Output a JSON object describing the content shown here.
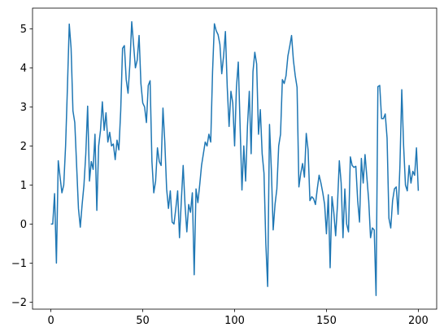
{
  "chart_data": {
    "type": "line",
    "x": [
      0,
      1,
      2,
      3,
      4,
      5,
      6,
      7,
      8,
      9,
      10,
      11,
      12,
      13,
      14,
      15,
      16,
      17,
      18,
      19,
      20,
      21,
      22,
      23,
      24,
      25,
      26,
      27,
      28,
      29,
      30,
      31,
      32,
      33,
      34,
      35,
      36,
      37,
      38,
      39,
      40,
      41,
      42,
      43,
      44,
      45,
      46,
      47,
      48,
      49,
      50,
      51,
      52,
      53,
      54,
      55,
      56,
      57,
      58,
      59,
      60,
      61,
      62,
      63,
      64,
      65,
      66,
      67,
      68,
      69,
      70,
      71,
      72,
      73,
      74,
      75,
      76,
      77,
      78,
      79,
      80,
      81,
      82,
      83,
      84,
      85,
      86,
      87,
      88,
      89,
      90,
      91,
      92,
      93,
      94,
      95,
      96,
      97,
      98,
      99,
      100,
      101,
      102,
      103,
      104,
      105,
      106,
      107,
      108,
      109,
      110,
      111,
      112,
      113,
      114,
      115,
      116,
      117,
      118,
      119,
      120,
      121,
      122,
      123,
      124,
      125,
      126,
      127,
      128,
      129,
      130,
      131,
      132,
      133,
      134,
      135,
      136,
      137,
      138,
      139,
      140,
      141,
      142,
      143,
      144,
      145,
      146,
      147,
      148,
      149,
      150,
      151,
      152,
      153,
      154,
      155,
      156,
      157,
      158,
      159,
      160,
      161,
      162,
      163,
      164,
      165,
      166,
      167,
      168,
      169,
      170,
      171,
      172,
      173,
      174,
      175,
      176,
      177,
      178,
      179,
      180,
      181,
      182,
      183,
      184,
      185,
      186,
      187,
      188,
      189,
      190,
      191,
      192,
      193,
      194,
      195,
      196,
      197,
      198,
      199,
      200
    ],
    "series": [
      {
        "color": "#1f77b4",
        "values": [
          0.0,
          0.0,
          0.78,
          -1.0,
          1.62,
          1.2,
          0.8,
          1.0,
          2.0,
          3.5,
          5.12,
          4.5,
          2.9,
          2.6,
          1.5,
          0.4,
          -0.08,
          0.5,
          1.0,
          1.8,
          3.02,
          1.1,
          1.6,
          1.4,
          2.3,
          0.35,
          2.0,
          2.4,
          3.13,
          2.4,
          2.85,
          2.1,
          2.35,
          2.0,
          2.05,
          1.65,
          2.15,
          1.9,
          2.9,
          4.5,
          4.57,
          3.7,
          3.35,
          4.1,
          5.18,
          4.6,
          4.0,
          4.2,
          4.83,
          3.6,
          3.1,
          3.0,
          2.6,
          3.55,
          3.67,
          1.6,
          0.8,
          1.1,
          1.95,
          1.6,
          1.5,
          2.97,
          2.1,
          0.9,
          0.4,
          0.85,
          0.05,
          0.0,
          0.4,
          0.85,
          -0.35,
          0.6,
          1.5,
          0.5,
          -0.2,
          0.5,
          0.3,
          0.8,
          -1.3,
          0.9,
          0.55,
          1.0,
          1.5,
          1.8,
          2.1,
          2.0,
          2.3,
          2.1,
          3.9,
          5.13,
          4.95,
          4.85,
          4.6,
          3.85,
          4.3,
          4.93,
          3.5,
          2.5,
          3.4,
          3.1,
          2.0,
          3.5,
          4.15,
          2.5,
          0.87,
          2.0,
          1.1,
          2.5,
          3.4,
          1.8,
          3.9,
          4.4,
          4.1,
          2.3,
          2.93,
          1.8,
          1.3,
          -0.5,
          -1.6,
          2.55,
          1.4,
          -0.15,
          0.5,
          0.9,
          2.0,
          2.3,
          3.7,
          3.6,
          3.8,
          4.3,
          4.55,
          4.83,
          4.2,
          3.8,
          3.5,
          0.95,
          1.3,
          1.55,
          1.2,
          2.32,
          1.9,
          0.6,
          0.7,
          0.65,
          0.5,
          0.9,
          1.25,
          1.05,
          0.8,
          0.5,
          -0.25,
          0.75,
          -1.12,
          0.7,
          0.3,
          -0.3,
          0.5,
          1.62,
          1.05,
          -0.35,
          0.9,
          0.0,
          -0.2,
          1.72,
          1.5,
          1.45,
          1.48,
          0.6,
          0.05,
          1.68,
          1.05,
          1.78,
          1.2,
          0.6,
          -0.35,
          -0.1,
          -0.15,
          -1.83,
          3.52,
          3.55,
          2.7,
          2.7,
          2.82,
          2.2,
          0.15,
          -0.1,
          0.6,
          0.9,
          0.95,
          0.25,
          1.5,
          3.44,
          2.0,
          1.0,
          0.85,
          1.5,
          1.05,
          1.35,
          1.25,
          1.95,
          0.85
        ]
      }
    ],
    "xlim": [
      -10,
      210
    ],
    "ylim": [
      -2.18,
      5.53
    ],
    "xticks": [
      0,
      50,
      100,
      150,
      200
    ],
    "yticks": [
      {
        "value": -2,
        "label": "−2"
      },
      {
        "value": -1,
        "label": "−1"
      },
      0,
      1,
      2,
      3,
      4,
      5
    ]
  }
}
